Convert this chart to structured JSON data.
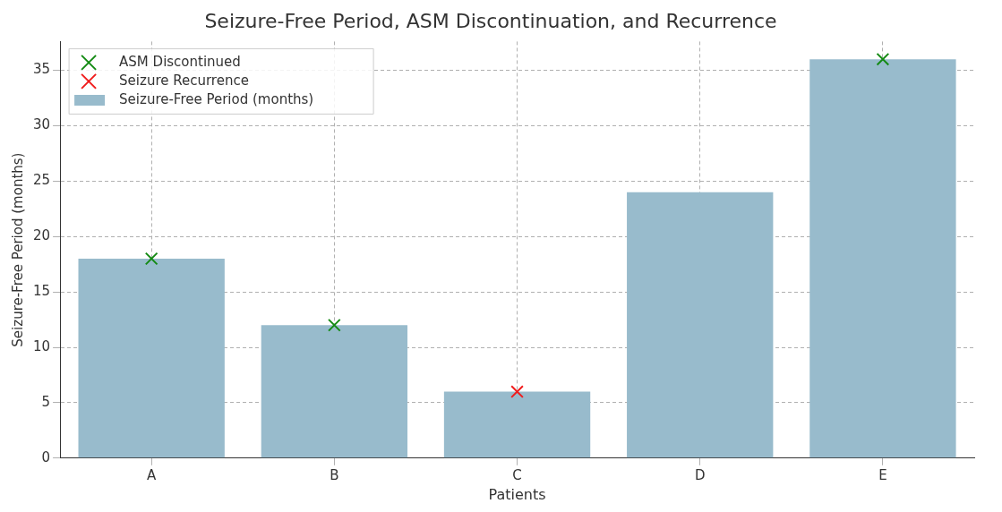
{
  "chart_data": {
    "type": "bar",
    "title": "Seizure-Free Period, ASM Discontinuation, and Recurrence",
    "xlabel": "Patients",
    "ylabel": "Seizure-Free Period (months)",
    "categories": [
      "A",
      "B",
      "C",
      "D",
      "E"
    ],
    "series": [
      {
        "name": "ASM Discontinued",
        "type": "scatter",
        "color": "#138a13",
        "x": [
          "A",
          "B",
          "E"
        ],
        "values": [
          18,
          12,
          36
        ]
      },
      {
        "name": "Seizure Recurrence",
        "type": "scatter",
        "color": "#f01c1c",
        "x": [
          "C"
        ],
        "values": [
          6
        ]
      },
      {
        "name": "Seizure-Free Period (months)",
        "color": "#98bbcc",
        "values": [
          18,
          12,
          6,
          24,
          36
        ]
      }
    ],
    "ylim": [
      0,
      37.6
    ],
    "yticks": [
      0,
      5,
      10,
      15,
      20,
      25,
      30,
      35
    ],
    "grid": true,
    "legend": "top left",
    "marker": "cross"
  }
}
